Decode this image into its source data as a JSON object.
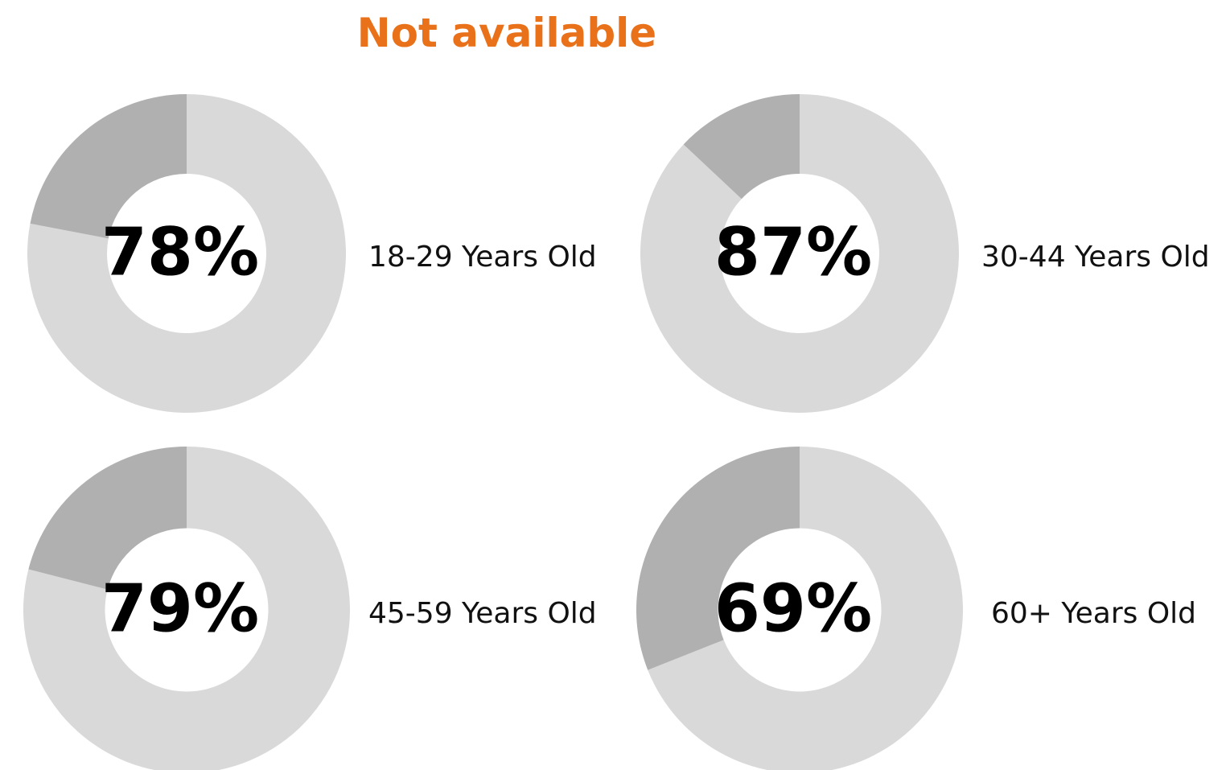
{
  "title": "Not available",
  "chart_data": [
    {
      "type": "donut",
      "name": "18-29 Years Old",
      "values": [
        78,
        22
      ],
      "value_labels": [
        "78%",
        null
      ],
      "colors": [
        "#d9d9d9",
        "#b0b0b0"
      ]
    },
    {
      "type": "donut",
      "name": "30-44 Years Old",
      "values": [
        87,
        13
      ],
      "value_labels": [
        "87%",
        null
      ],
      "colors": [
        "#d9d9d9",
        "#b0b0b0"
      ]
    },
    {
      "type": "donut",
      "name": "45-59 Years Old",
      "values": [
        79,
        21
      ],
      "value_labels": [
        "79%",
        null
      ],
      "colors": [
        "#d9d9d9",
        "#b0b0b0"
      ]
    },
    {
      "type": "donut",
      "name": "60+ Years Old",
      "values": [
        69,
        31
      ],
      "value_labels": [
        "69%",
        null
      ],
      "colors": [
        "#d9d9d9",
        "#b0b0b0"
      ]
    }
  ]
}
